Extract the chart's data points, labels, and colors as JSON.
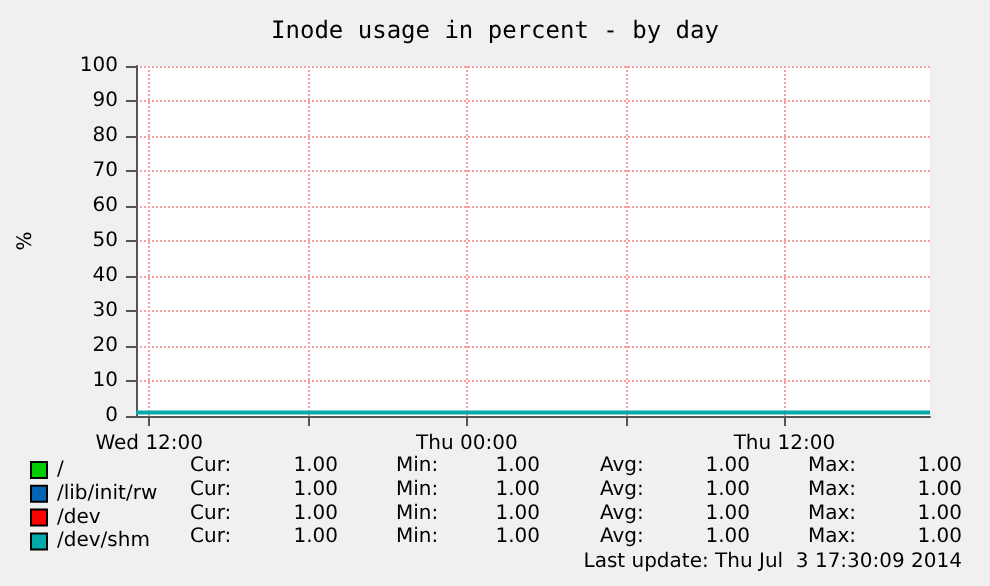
{
  "chart_data": {
    "type": "line",
    "title": "Inode usage in percent - by day",
    "ylabel": "%",
    "xlim": [
      "2014-07-02T11:30",
      "2014-07-03T17:30"
    ],
    "xticks": [
      {
        "value": "2014-07-02T12:00",
        "label": "Wed 12:00"
      },
      {
        "value": "2014-07-02T18:00",
        "label": null
      },
      {
        "value": "2014-07-03T00:00",
        "label": "Thu 00:00"
      },
      {
        "value": "2014-07-03T06:00",
        "label": null
      },
      {
        "value": "2014-07-03T12:00",
        "label": "Thu 12:00"
      }
    ],
    "ylim": [
      0,
      100
    ],
    "yticks": [
      0,
      10,
      20,
      30,
      40,
      50,
      60,
      70,
      80,
      90,
      100
    ],
    "grid": true,
    "legend": "bottom left",
    "marker": "none",
    "line_style": "solid",
    "x": [
      "2014-07-02T11:30",
      "2014-07-03T17:30"
    ],
    "series": [
      {
        "name": "/",
        "color": "#00cc00",
        "values": [
          null,
          null
        ]
      },
      {
        "name": "/lib/init/rw",
        "color": "#0066b3",
        "values": [
          null,
          null
        ]
      },
      {
        "name": "/dev",
        "color": "#ff0000",
        "values": [
          null,
          null
        ]
      },
      {
        "name": "/dev/shm",
        "color": "#00aaaa",
        "values": [
          1,
          1
        ]
      }
    ],
    "annotations": [
      "Cur: 1.00 Min: 1.00 Avg: 1.00 Max: 1.00",
      "Cur: 1.00 Min: 1.00 Avg: 1.00 Max: 1.00",
      "Cur: 1.00 Min: 1.00 Avg: 1.00 Max: 1.00",
      "Cur: 1.00 Min: 1.00 Avg: 1.00 Max: 1.00",
      "Last update: Thu Jul  3 17:30:09 2014"
    ]
  }
}
